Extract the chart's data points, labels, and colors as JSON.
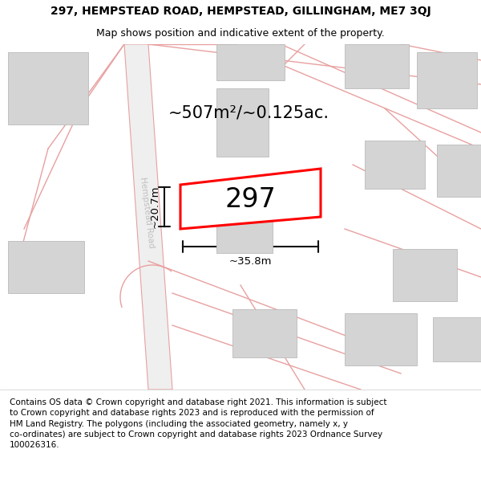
{
  "title": "297, HEMPSTEAD ROAD, HEMPSTEAD, GILLINGHAM, ME7 3QJ",
  "subtitle": "Map shows position and indicative extent of the property.",
  "footer": "Contains OS data © Crown copyright and database right 2021. This information is subject\nto Crown copyright and database rights 2023 and is reproduced with the permission of\nHM Land Registry. The polygons (including the associated geometry, namely x, y\nco-ordinates) are subject to Crown copyright and database rights 2023 Ordnance Survey\n100026316.",
  "area_label": "~507m²/~0.125ac.",
  "plot_number": "297",
  "width_label": "~35.8m",
  "height_label": "~20.7m",
  "road_label": "Hempstead Road",
  "red_color": "#ff0000",
  "pink_color": "#e8a0a0",
  "building_color": "#d4d4d4",
  "building_edge": "#bbbbbb",
  "road_fill": "#efefef",
  "map_bg": "#ffffff",
  "dim_line_color": "#111111",
  "title_fontsize": 10,
  "subtitle_fontsize": 9,
  "footer_fontsize": 7.5
}
